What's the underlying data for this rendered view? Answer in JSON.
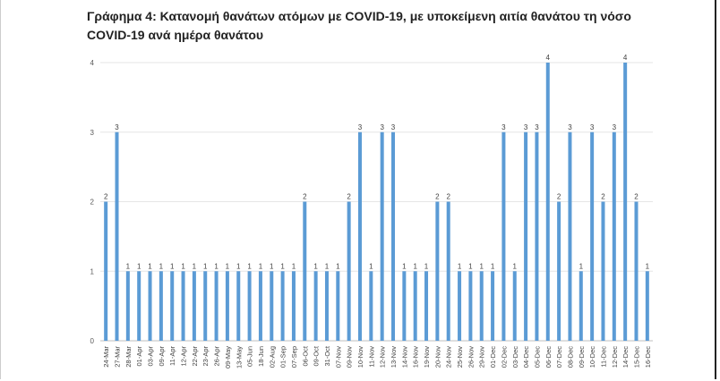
{
  "chart_data": {
    "type": "bar",
    "title": "Γράφημα 4: Κατανομή θανάτων ατόμων με COVID-19, με υποκείμενη αιτία θανάτου τη νόσο COVID-19 ανά ημέρα θανάτου",
    "xlabel": "",
    "ylabel": "",
    "ylim": [
      0,
      4
    ],
    "yticks": [
      "0",
      "1",
      "2",
      "3",
      "4"
    ],
    "grid": true,
    "legend": "none",
    "bar_color": "#5b9bd5",
    "categories": [
      "24-Mar",
      "27-Mar",
      "28-Mar",
      "01-Apr",
      "03-Apr",
      "09-Apr",
      "11-Apr",
      "12-Apr",
      "22-Apr",
      "23-Apr",
      "26-Apr",
      "09-May",
      "13-May",
      "05-Jun",
      "18-Jun",
      "02-Aug",
      "01-Sep",
      "07-Sep",
      "06-Oct",
      "09-Oct",
      "31-Oct",
      "07-Nov",
      "09-Nov",
      "10-Nov",
      "11-Nov",
      "12-Nov",
      "13-Nov",
      "14-Nov",
      "16-Nov",
      "19-Nov",
      "20-Nov",
      "24-Nov",
      "25-Nov",
      "26-Nov",
      "29-Nov",
      "01-Dec",
      "02-Dec",
      "03-Dec",
      "04-Dec",
      "05-Dec",
      "06-Dec",
      "07-Dec",
      "08-Dec",
      "09-Dec",
      "10-Dec",
      "11-Dec",
      "12-Dec",
      "14-Dec",
      "15-Dec",
      "16-Dec"
    ],
    "values": [
      2,
      3,
      1,
      1,
      1,
      1,
      1,
      1,
      1,
      1,
      1,
      1,
      1,
      1,
      1,
      1,
      1,
      1,
      2,
      1,
      1,
      1,
      2,
      3,
      1,
      3,
      3,
      1,
      1,
      1,
      2,
      2,
      1,
      1,
      1,
      1,
      3,
      1,
      3,
      3,
      4,
      2,
      3,
      1,
      3,
      2,
      3,
      4,
      2,
      1
    ]
  }
}
